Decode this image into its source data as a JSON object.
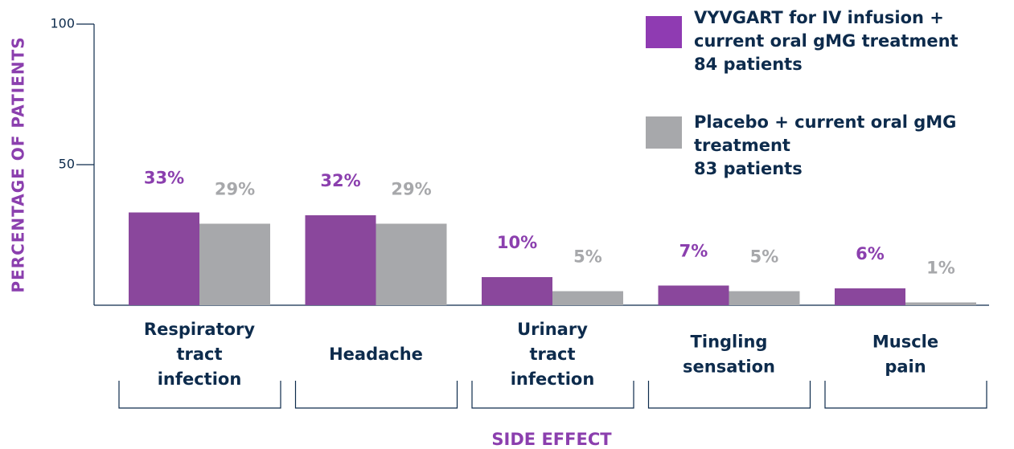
{
  "chart_data": {
    "type": "bar",
    "x_label": "SIDE EFFECT",
    "y_label": "PERCENTAGE OF PATIENTS",
    "categories": [
      "Respiratory tract infection",
      "Headache",
      "Urinary tract infection",
      "Tingling sensation",
      "Muscle pain"
    ],
    "series": [
      {
        "name": "VYVGART for IV infusion + current oral gMG treatment",
        "patients": "84 patients",
        "color": "#8a479c",
        "label_color": "#8b3fae",
        "values": [
          33,
          32,
          10,
          7,
          6
        ],
        "value_labels": [
          "33%",
          "32%",
          "10%",
          "7%",
          "6%"
        ]
      },
      {
        "name": "Placebo + current oral gMG treatment",
        "patients": "83 patients",
        "color": "#a7a8ab",
        "label_color": "#a7a8ab",
        "values": [
          29,
          29,
          5,
          5,
          1
        ],
        "value_labels": [
          "29%",
          "29%",
          "5%",
          "5%",
          "1%"
        ]
      }
    ],
    "ylim": [
      0,
      100
    ],
    "yticks": [
      50,
      100
    ],
    "grid": false
  }
}
